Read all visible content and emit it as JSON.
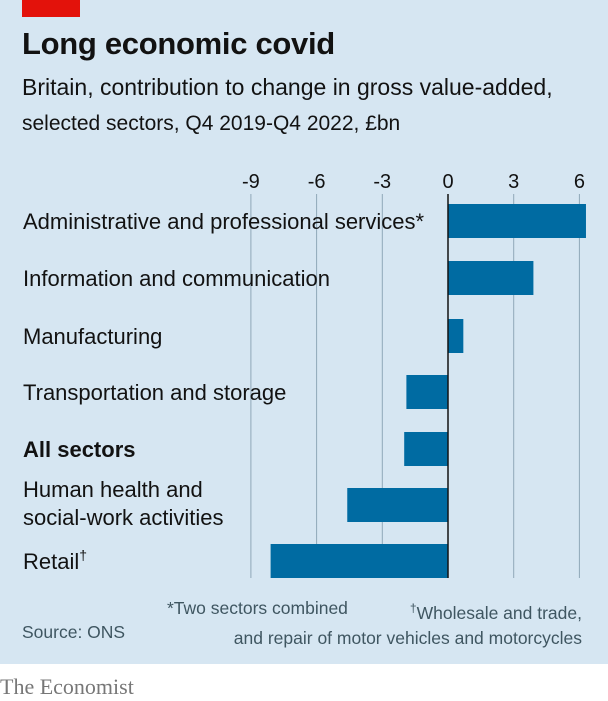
{
  "header": {
    "title": "Long economic covid",
    "subtitle_bold": "Britain, contribution to change in gross value-added,",
    "subtitle_rest": "selected sectors, Q4 2019-Q4 2022, £bn"
  },
  "chart_data": {
    "type": "bar",
    "orientation": "horizontal",
    "title": "Long economic covid",
    "subtitle": "Britain, contribution to change in gross value-added, selected sectors, Q4 2019-Q4 2022, £bn",
    "xlim": [
      -9,
      6
    ],
    "ticks": [
      -9,
      -6,
      -3,
      0,
      3,
      6
    ],
    "tick_labels": [
      "-9",
      "-6",
      "-3",
      "0",
      "3",
      "6"
    ],
    "grid": true,
    "categories": [
      "Administrative and professional services*",
      "Information and communication",
      "Manufacturing",
      "Transportation and storage",
      "All sectors",
      "Human health and social-work activities",
      "Retail†"
    ],
    "values": [
      6.3,
      3.9,
      0.7,
      -1.9,
      -2.0,
      -4.6,
      -8.1
    ],
    "emphasized_category": "All sectors",
    "bar_color": "#006ba2",
    "grid_color": "#8fa8b8"
  },
  "footnotes": {
    "star": "*Two sectors combined",
    "dagger_mark": "†",
    "dagger_text": "Wholesale and trade,",
    "dagger_text_2": "and repair of motor vehicles and motorcycles"
  },
  "source": "Source: ONS",
  "brand": "The Economist",
  "colors": {
    "background": "#d6e6f2",
    "accent_red": "#e3120b",
    "text": "#121212"
  }
}
